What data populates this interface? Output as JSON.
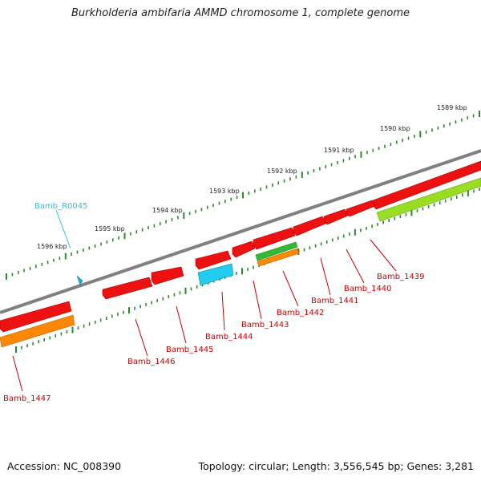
{
  "title": "Burkholderia ambifaria AMMD chromosome 1, complete genome",
  "footer": {
    "accession": "Accession: NC_008390",
    "summary": "Topology: circular; Length: 3,556,545 bp; Genes: 3,281"
  },
  "scale_labels": [
    "1589 kbp",
    "1590 kbp",
    "1591 kbp",
    "1592 kbp",
    "1593 kbp",
    "1594 kbp",
    "1595 kbp",
    "1596 kbp"
  ],
  "gene_labels": [
    {
      "name": "Bamb_1439",
      "color": "#cc0000"
    },
    {
      "name": "Bamb_1440",
      "color": "#cc0000"
    },
    {
      "name": "Bamb_1441",
      "color": "#cc0000"
    },
    {
      "name": "Bamb_1442",
      "color": "#cc0000"
    },
    {
      "name": "Bamb_1443",
      "color": "#cc0000"
    },
    {
      "name": "Bamb_1444",
      "color": "#cc0000"
    },
    {
      "name": "Bamb_1445",
      "color": "#cc0000"
    },
    {
      "name": "Bamb_1446",
      "color": "#cc0000"
    },
    {
      "name": "Bamb_1447",
      "color": "#cc0000"
    },
    {
      "name": "Bamb_R0045",
      "color": "#33bbdd"
    }
  ],
  "colors": {
    "backbone": "#808080",
    "cds": "#ee1111",
    "rrna": "#22ccee",
    "orange_feature": "#ff8800",
    "green_feature": "#33bb33",
    "lime_feature": "#99dd22",
    "tick": "#2a8a2a"
  }
}
